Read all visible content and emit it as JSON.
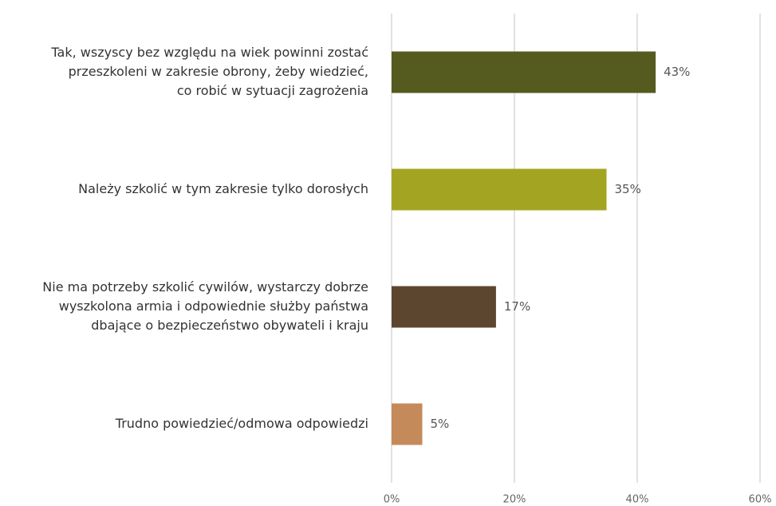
{
  "chart_data": {
    "type": "barh",
    "categories": [
      [
        "Tak, wszyscy bez względu na wiek powinni zostać",
        "przeszkoleni w zakresie obrony, żeby wiedzieć,",
        "co robić w sytuacji zagrożenia"
      ],
      [
        "Należy szkolić w tym zakresie tylko dorosłych"
      ],
      [
        "Nie ma potrzeby szkolić cywilów, wystarczy dobrze",
        "wyszkolona armia i odpowiednie służby państwa",
        "dbające o bezpieczeństwo obywateli i kraju"
      ],
      [
        "Trudno powiedzieć/odmowa odpowiedzi"
      ]
    ],
    "values": [
      43,
      35,
      17,
      5
    ],
    "value_labels": [
      "43%",
      "35%",
      "17%",
      "5%"
    ],
    "colors": [
      "#555a1e",
      "#a3a522",
      "#5c4630",
      "#c48a5a"
    ],
    "xlim": [
      0,
      60
    ],
    "xticks": [
      {
        "value": 0,
        "label": "0%"
      },
      {
        "value": 20,
        "label": "20%"
      },
      {
        "value": 40,
        "label": "40%"
      },
      {
        "value": 60,
        "label": "60%"
      }
    ],
    "grid": true
  }
}
